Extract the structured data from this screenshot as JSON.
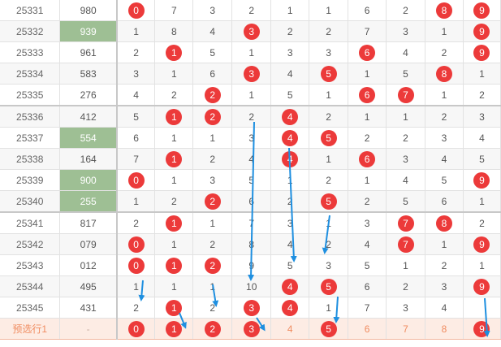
{
  "rows": [
    {
      "issue": "25331",
      "num": "980",
      "hl": false,
      "sep": false,
      "cells": [
        {
          "v": "0",
          "hit": true
        },
        {
          "v": "7",
          "hit": false
        },
        {
          "v": "3",
          "hit": false
        },
        {
          "v": "2",
          "hit": false
        },
        {
          "v": "1",
          "hit": false
        },
        {
          "v": "1",
          "hit": false
        },
        {
          "v": "6",
          "hit": false
        },
        {
          "v": "2",
          "hit": false
        },
        {
          "v": "8",
          "hit": true
        },
        {
          "v": "9",
          "hit": true
        }
      ]
    },
    {
      "issue": "25332",
      "num": "939",
      "hl": true,
      "sep": false,
      "cells": [
        {
          "v": "1",
          "hit": false
        },
        {
          "v": "8",
          "hit": false
        },
        {
          "v": "4",
          "hit": false
        },
        {
          "v": "3",
          "hit": true
        },
        {
          "v": "2",
          "hit": false
        },
        {
          "v": "2",
          "hit": false
        },
        {
          "v": "7",
          "hit": false
        },
        {
          "v": "3",
          "hit": false
        },
        {
          "v": "1",
          "hit": false
        },
        {
          "v": "9",
          "hit": true
        }
      ]
    },
    {
      "issue": "25333",
      "num": "961",
      "hl": false,
      "sep": false,
      "cells": [
        {
          "v": "2",
          "hit": false
        },
        {
          "v": "1",
          "hit": true
        },
        {
          "v": "5",
          "hit": false
        },
        {
          "v": "1",
          "hit": false
        },
        {
          "v": "3",
          "hit": false
        },
        {
          "v": "3",
          "hit": false
        },
        {
          "v": "6",
          "hit": true
        },
        {
          "v": "4",
          "hit": false
        },
        {
          "v": "2",
          "hit": false
        },
        {
          "v": "9",
          "hit": true
        }
      ]
    },
    {
      "issue": "25334",
      "num": "583",
      "hl": false,
      "sep": false,
      "cells": [
        {
          "v": "3",
          "hit": false
        },
        {
          "v": "1",
          "hit": false
        },
        {
          "v": "6",
          "hit": false
        },
        {
          "v": "3",
          "hit": true
        },
        {
          "v": "4",
          "hit": false
        },
        {
          "v": "5",
          "hit": true
        },
        {
          "v": "1",
          "hit": false
        },
        {
          "v": "5",
          "hit": false
        },
        {
          "v": "8",
          "hit": true
        },
        {
          "v": "1",
          "hit": false
        }
      ]
    },
    {
      "issue": "25335",
      "num": "276",
      "hl": false,
      "sep": true,
      "cells": [
        {
          "v": "4",
          "hit": false
        },
        {
          "v": "2",
          "hit": false
        },
        {
          "v": "2",
          "hit": true
        },
        {
          "v": "1",
          "hit": false
        },
        {
          "v": "5",
          "hit": false
        },
        {
          "v": "1",
          "hit": false
        },
        {
          "v": "6",
          "hit": true
        },
        {
          "v": "7",
          "hit": true
        },
        {
          "v": "1",
          "hit": false
        },
        {
          "v": "2",
          "hit": false
        }
      ]
    },
    {
      "issue": "25336",
      "num": "412",
      "hl": false,
      "sep": false,
      "cells": [
        {
          "v": "5",
          "hit": false
        },
        {
          "v": "1",
          "hit": true
        },
        {
          "v": "2",
          "hit": true
        },
        {
          "v": "2",
          "hit": false
        },
        {
          "v": "4",
          "hit": true
        },
        {
          "v": "2",
          "hit": false
        },
        {
          "v": "1",
          "hit": false
        },
        {
          "v": "1",
          "hit": false
        },
        {
          "v": "2",
          "hit": false
        },
        {
          "v": "3",
          "hit": false
        }
      ]
    },
    {
      "issue": "25337",
      "num": "554",
      "hl": true,
      "sep": false,
      "cells": [
        {
          "v": "6",
          "hit": false
        },
        {
          "v": "1",
          "hit": false
        },
        {
          "v": "1",
          "hit": false
        },
        {
          "v": "3",
          "hit": false
        },
        {
          "v": "4",
          "hit": true
        },
        {
          "v": "5",
          "hit": true
        },
        {
          "v": "2",
          "hit": false
        },
        {
          "v": "2",
          "hit": false
        },
        {
          "v": "3",
          "hit": false
        },
        {
          "v": "4",
          "hit": false
        }
      ]
    },
    {
      "issue": "25338",
      "num": "164",
      "hl": false,
      "sep": false,
      "cells": [
        {
          "v": "7",
          "hit": false
        },
        {
          "v": "1",
          "hit": true
        },
        {
          "v": "2",
          "hit": false
        },
        {
          "v": "4",
          "hit": false
        },
        {
          "v": "4",
          "hit": true
        },
        {
          "v": "1",
          "hit": false
        },
        {
          "v": "6",
          "hit": true
        },
        {
          "v": "3",
          "hit": false
        },
        {
          "v": "4",
          "hit": false
        },
        {
          "v": "5",
          "hit": false
        }
      ]
    },
    {
      "issue": "25339",
      "num": "900",
      "hl": true,
      "sep": false,
      "cells": [
        {
          "v": "0",
          "hit": true
        },
        {
          "v": "1",
          "hit": false
        },
        {
          "v": "3",
          "hit": false
        },
        {
          "v": "5",
          "hit": false
        },
        {
          "v": "1",
          "hit": false
        },
        {
          "v": "2",
          "hit": false
        },
        {
          "v": "1",
          "hit": false
        },
        {
          "v": "4",
          "hit": false
        },
        {
          "v": "5",
          "hit": false
        },
        {
          "v": "9",
          "hit": true
        }
      ]
    },
    {
      "issue": "25340",
      "num": "255",
      "hl": true,
      "sep": true,
      "cells": [
        {
          "v": "1",
          "hit": false
        },
        {
          "v": "2",
          "hit": false
        },
        {
          "v": "2",
          "hit": true
        },
        {
          "v": "6",
          "hit": false
        },
        {
          "v": "2",
          "hit": false
        },
        {
          "v": "5",
          "hit": true
        },
        {
          "v": "2",
          "hit": false
        },
        {
          "v": "5",
          "hit": false
        },
        {
          "v": "6",
          "hit": false
        },
        {
          "v": "1",
          "hit": false
        }
      ]
    },
    {
      "issue": "25341",
      "num": "817",
      "hl": false,
      "sep": false,
      "cells": [
        {
          "v": "2",
          "hit": false
        },
        {
          "v": "1",
          "hit": true
        },
        {
          "v": "1",
          "hit": false
        },
        {
          "v": "7",
          "hit": false
        },
        {
          "v": "3",
          "hit": false
        },
        {
          "v": "1",
          "hit": false
        },
        {
          "v": "3",
          "hit": false
        },
        {
          "v": "7",
          "hit": true
        },
        {
          "v": "8",
          "hit": true
        },
        {
          "v": "2",
          "hit": false
        }
      ]
    },
    {
      "issue": "25342",
      "num": "079",
      "hl": false,
      "sep": false,
      "cells": [
        {
          "v": "0",
          "hit": true
        },
        {
          "v": "1",
          "hit": false
        },
        {
          "v": "2",
          "hit": false
        },
        {
          "v": "8",
          "hit": false
        },
        {
          "v": "4",
          "hit": false
        },
        {
          "v": "2",
          "hit": false
        },
        {
          "v": "4",
          "hit": false
        },
        {
          "v": "7",
          "hit": true
        },
        {
          "v": "1",
          "hit": false
        },
        {
          "v": "9",
          "hit": true
        }
      ]
    },
    {
      "issue": "25343",
      "num": "012",
      "hl": false,
      "sep": false,
      "cells": [
        {
          "v": "0",
          "hit": true
        },
        {
          "v": "1",
          "hit": true
        },
        {
          "v": "2",
          "hit": true
        },
        {
          "v": "9",
          "hit": false
        },
        {
          "v": "5",
          "hit": false
        },
        {
          "v": "3",
          "hit": false
        },
        {
          "v": "5",
          "hit": false
        },
        {
          "v": "1",
          "hit": false
        },
        {
          "v": "2",
          "hit": false
        },
        {
          "v": "1",
          "hit": false
        }
      ]
    },
    {
      "issue": "25344",
      "num": "495",
      "hl": false,
      "sep": false,
      "cells": [
        {
          "v": "1",
          "hit": false
        },
        {
          "v": "1",
          "hit": false
        },
        {
          "v": "1",
          "hit": false
        },
        {
          "v": "10",
          "hit": false
        },
        {
          "v": "4",
          "hit": true
        },
        {
          "v": "5",
          "hit": true
        },
        {
          "v": "6",
          "hit": false
        },
        {
          "v": "2",
          "hit": false
        },
        {
          "v": "3",
          "hit": false
        },
        {
          "v": "9",
          "hit": true
        }
      ]
    },
    {
      "issue": "25345",
      "num": "431",
      "hl": false,
      "sep": false,
      "cells": [
        {
          "v": "2",
          "hit": false
        },
        {
          "v": "1",
          "hit": true
        },
        {
          "v": "2",
          "hit": false
        },
        {
          "v": "3",
          "hit": true
        },
        {
          "v": "4",
          "hit": true
        },
        {
          "v": "1",
          "hit": false
        },
        {
          "v": "7",
          "hit": false
        },
        {
          "v": "3",
          "hit": false
        },
        {
          "v": "4",
          "hit": false
        },
        {
          "v": "",
          "hit": false
        }
      ]
    }
  ],
  "prediction": {
    "label": "预选行1",
    "num": "-",
    "cells": [
      {
        "v": "0",
        "hit": true
      },
      {
        "v": "1",
        "hit": true
      },
      {
        "v": "2",
        "hit": true
      },
      {
        "v": "3",
        "hit": true
      },
      {
        "v": "4",
        "hit": false
      },
      {
        "v": "5",
        "hit": true
      },
      {
        "v": "6",
        "hit": false
      },
      {
        "v": "7",
        "hit": false
      },
      {
        "v": "8",
        "hit": false
      },
      {
        "v": "9",
        "hit": true
      }
    ]
  },
  "colors": {
    "ball": "#ec3a3a",
    "highlight": "#9ebf94",
    "prediction_bg": "#fdece4",
    "prediction_text": "#f08c60",
    "arrow": "#1e8fe0"
  }
}
